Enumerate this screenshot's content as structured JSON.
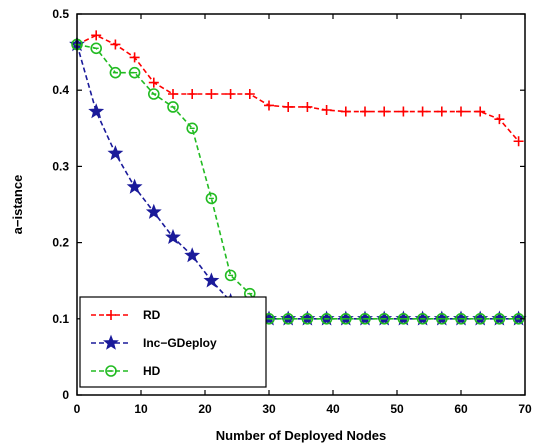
{
  "chart_data": {
    "type": "line",
    "xlabel": "Number of Deployed Nodes",
    "ylabel": "a−istance",
    "xlim": [
      0,
      70
    ],
    "ylim": [
      0,
      0.5
    ],
    "xticks": [
      "0",
      "10",
      "20",
      "30",
      "40",
      "50",
      "60",
      "70"
    ],
    "yticks": [
      "0",
      "0.1",
      "0.2",
      "0.3",
      "0.4",
      "0.5"
    ],
    "grid": false,
    "legend_position": "bottom-left",
    "series": [
      {
        "name": "RD",
        "color": "#ff0000",
        "marker": "plus",
        "x": [
          0,
          3,
          6,
          9,
          12,
          15,
          18,
          21,
          24,
          27,
          30,
          33,
          36,
          39,
          42,
          45,
          48,
          51,
          54,
          57,
          60,
          63,
          66,
          69
        ],
        "y": [
          0.46,
          0.472,
          0.46,
          0.443,
          0.41,
          0.395,
          0.395,
          0.395,
          0.395,
          0.395,
          0.38,
          0.378,
          0.378,
          0.374,
          0.372,
          0.372,
          0.372,
          0.372,
          0.372,
          0.372,
          0.372,
          0.372,
          0.362,
          0.333
        ]
      },
      {
        "name": "Inc−GDeploy",
        "color": "#1a1a9a",
        "marker": "star",
        "x": [
          0,
          3,
          6,
          9,
          12,
          15,
          18,
          21,
          24,
          27,
          30,
          33,
          36,
          39,
          42,
          45,
          48,
          51,
          54,
          57,
          60,
          63,
          66,
          69
        ],
        "y": [
          0.46,
          0.372,
          0.317,
          0.273,
          0.24,
          0.207,
          0.183,
          0.15,
          0.123,
          0.105,
          0.1,
          0.1,
          0.1,
          0.1,
          0.1,
          0.1,
          0.1,
          0.1,
          0.1,
          0.1,
          0.1,
          0.1,
          0.1,
          0.1
        ]
      },
      {
        "name": "HD",
        "color": "#22bb22",
        "marker": "circle",
        "x": [
          0,
          3,
          6,
          9,
          12,
          15,
          18,
          21,
          24,
          27,
          30,
          33,
          36,
          39,
          42,
          45,
          48,
          51,
          54,
          57,
          60,
          63,
          66,
          69
        ],
        "y": [
          0.46,
          0.455,
          0.423,
          0.423,
          0.395,
          0.378,
          0.35,
          0.258,
          0.157,
          0.133,
          0.1,
          0.1,
          0.1,
          0.1,
          0.1,
          0.1,
          0.1,
          0.1,
          0.1,
          0.1,
          0.1,
          0.1,
          0.1,
          0.1
        ]
      }
    ]
  }
}
